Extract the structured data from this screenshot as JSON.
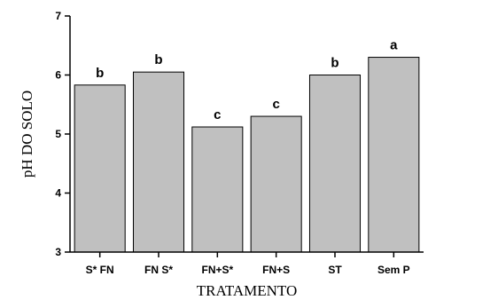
{
  "chart_data": {
    "type": "bar",
    "categories": [
      "S* FN",
      "FN S*",
      "FN+S*",
      "FN+S",
      "ST",
      "Sem P"
    ],
    "values": [
      5.83,
      6.05,
      5.12,
      5.3,
      6.0,
      6.3
    ],
    "significance_letters": [
      "b",
      "b",
      "c",
      "c",
      "b",
      "a"
    ],
    "xlabel": "TRATAMENTO",
    "ylabel": "pH DO SOLO",
    "ylim": [
      3,
      7
    ],
    "yticks": [
      "3",
      "4",
      "5",
      "6",
      "7"
    ],
    "grid": false,
    "bar_color": "#c0c0c0",
    "bar_edge_color": "#000000"
  }
}
